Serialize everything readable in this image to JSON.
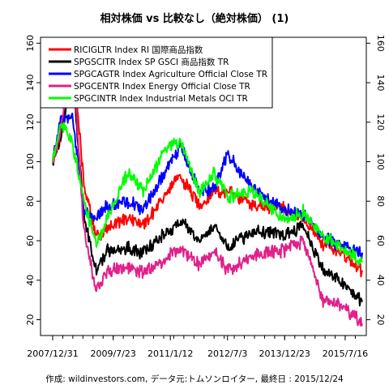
{
  "chart_data": {
    "type": "line",
    "title": "相対株価 vs 比較なし（絶対株価） (1)",
    "footer": "作成: wildinvestors.com, データ元:トムソンロイター, 最終日 : 2015/12/24",
    "x_tick_labels": [
      "2007/12/31",
      "2009/7/23",
      "2011/1/12",
      "2012/7/3",
      "2013/12/23",
      "2015/7/16"
    ],
    "x_tick_dates": [
      "2007-12-31",
      "2009-07-23",
      "2011-01-12",
      "2012-07-03",
      "2013-12-23",
      "2015-07-16"
    ],
    "x_range": [
      "2007-12-31",
      "2015-12-24"
    ],
    "ylim": [
      12,
      163
    ],
    "y_ticks": [
      20,
      40,
      60,
      80,
      100,
      120,
      140,
      160
    ],
    "grid": false,
    "legend_position": "top-left",
    "series": [
      {
        "name": "RICIGLTR Index RI 国際商品指数",
        "color": "#ff0000",
        "points": [
          [
            "2007-12-31",
            100
          ],
          [
            "2008-03-15",
            112
          ],
          [
            "2008-07-03",
            158
          ],
          [
            "2008-10-20",
            88
          ],
          [
            "2009-02-15",
            62
          ],
          [
            "2009-06-01",
            66
          ],
          [
            "2009-12-15",
            72
          ],
          [
            "2010-05-01",
            68
          ],
          [
            "2011-04-15",
            93
          ],
          [
            "2011-10-10",
            78
          ],
          [
            "2012-03-01",
            85
          ],
          [
            "2012-07-03",
            85
          ],
          [
            "2013-03-01",
            78
          ],
          [
            "2013-12-23",
            76
          ],
          [
            "2014-06-15",
            72
          ],
          [
            "2014-12-20",
            58
          ],
          [
            "2015-05-15",
            55
          ],
          [
            "2015-12-24",
            45
          ]
        ]
      },
      {
        "name": "SPGSCITR Index SP GSCI 商品指数 TR",
        "color": "#000000",
        "points": [
          [
            "2007-12-31",
            100
          ],
          [
            "2008-03-15",
            112
          ],
          [
            "2008-07-03",
            147
          ],
          [
            "2008-10-20",
            72
          ],
          [
            "2009-02-15",
            45
          ],
          [
            "2009-06-01",
            55
          ],
          [
            "2009-12-15",
            56
          ],
          [
            "2010-05-01",
            54
          ],
          [
            "2011-04-15",
            70
          ],
          [
            "2011-10-10",
            60
          ],
          [
            "2012-03-01",
            68
          ],
          [
            "2012-07-03",
            57
          ],
          [
            "2013-03-01",
            65
          ],
          [
            "2013-12-23",
            63
          ],
          [
            "2014-06-15",
            68
          ],
          [
            "2014-12-20",
            45
          ],
          [
            "2015-05-15",
            40
          ],
          [
            "2015-12-24",
            29
          ]
        ]
      },
      {
        "name": "SPGCAGTR Index Agriculture Official Close TR",
        "color": "#0000ff",
        "points": [
          [
            "2007-12-31",
            100
          ],
          [
            "2008-03-15",
            122
          ],
          [
            "2008-07-03",
            124
          ],
          [
            "2008-10-20",
            75
          ],
          [
            "2009-02-15",
            72
          ],
          [
            "2009-06-01",
            78
          ],
          [
            "2009-12-15",
            80
          ],
          [
            "2010-05-01",
            76
          ],
          [
            "2010-12-15",
            96
          ],
          [
            "2011-04-15",
            108
          ],
          [
            "2011-10-10",
            85
          ],
          [
            "2012-03-01",
            86
          ],
          [
            "2012-07-03",
            105
          ],
          [
            "2013-03-01",
            86
          ],
          [
            "2013-12-23",
            75
          ],
          [
            "2014-06-15",
            74
          ],
          [
            "2014-12-20",
            62
          ],
          [
            "2015-05-15",
            58
          ],
          [
            "2015-12-24",
            54
          ]
        ]
      },
      {
        "name": "SPGCENTR Index Energy Official Close TR",
        "color": "#e0218a",
        "points": [
          [
            "2007-12-31",
            100
          ],
          [
            "2008-03-15",
            115
          ],
          [
            "2008-07-03",
            157
          ],
          [
            "2008-10-20",
            65
          ],
          [
            "2009-02-15",
            35
          ],
          [
            "2009-06-01",
            45
          ],
          [
            "2009-12-15",
            46
          ],
          [
            "2010-05-01",
            44
          ],
          [
            "2011-04-15",
            56
          ],
          [
            "2011-10-10",
            48
          ],
          [
            "2012-03-01",
            55
          ],
          [
            "2012-07-03",
            45
          ],
          [
            "2013-03-01",
            53
          ],
          [
            "2013-12-23",
            55
          ],
          [
            "2014-06-15",
            60
          ],
          [
            "2014-12-20",
            30
          ],
          [
            "2015-05-15",
            28
          ],
          [
            "2015-12-24",
            18
          ]
        ]
      },
      {
        "name": "SPGCINTR Index Industrial Metals OCI TR",
        "color": "#00ff00",
        "points": [
          [
            "2007-12-31",
            100
          ],
          [
            "2008-03-15",
            120
          ],
          [
            "2008-07-03",
            110
          ],
          [
            "2008-10-20",
            80
          ],
          [
            "2009-02-15",
            58
          ],
          [
            "2009-06-01",
            72
          ],
          [
            "2009-12-15",
            95
          ],
          [
            "2010-05-01",
            85
          ],
          [
            "2010-12-15",
            108
          ],
          [
            "2011-04-15",
            110
          ],
          [
            "2011-10-10",
            85
          ],
          [
            "2012-03-01",
            94
          ],
          [
            "2012-07-03",
            82
          ],
          [
            "2013-03-01",
            85
          ],
          [
            "2013-12-23",
            70
          ],
          [
            "2014-06-15",
            75
          ],
          [
            "2014-12-20",
            62
          ],
          [
            "2015-05-15",
            58
          ],
          [
            "2015-12-24",
            49
          ]
        ]
      }
    ]
  }
}
